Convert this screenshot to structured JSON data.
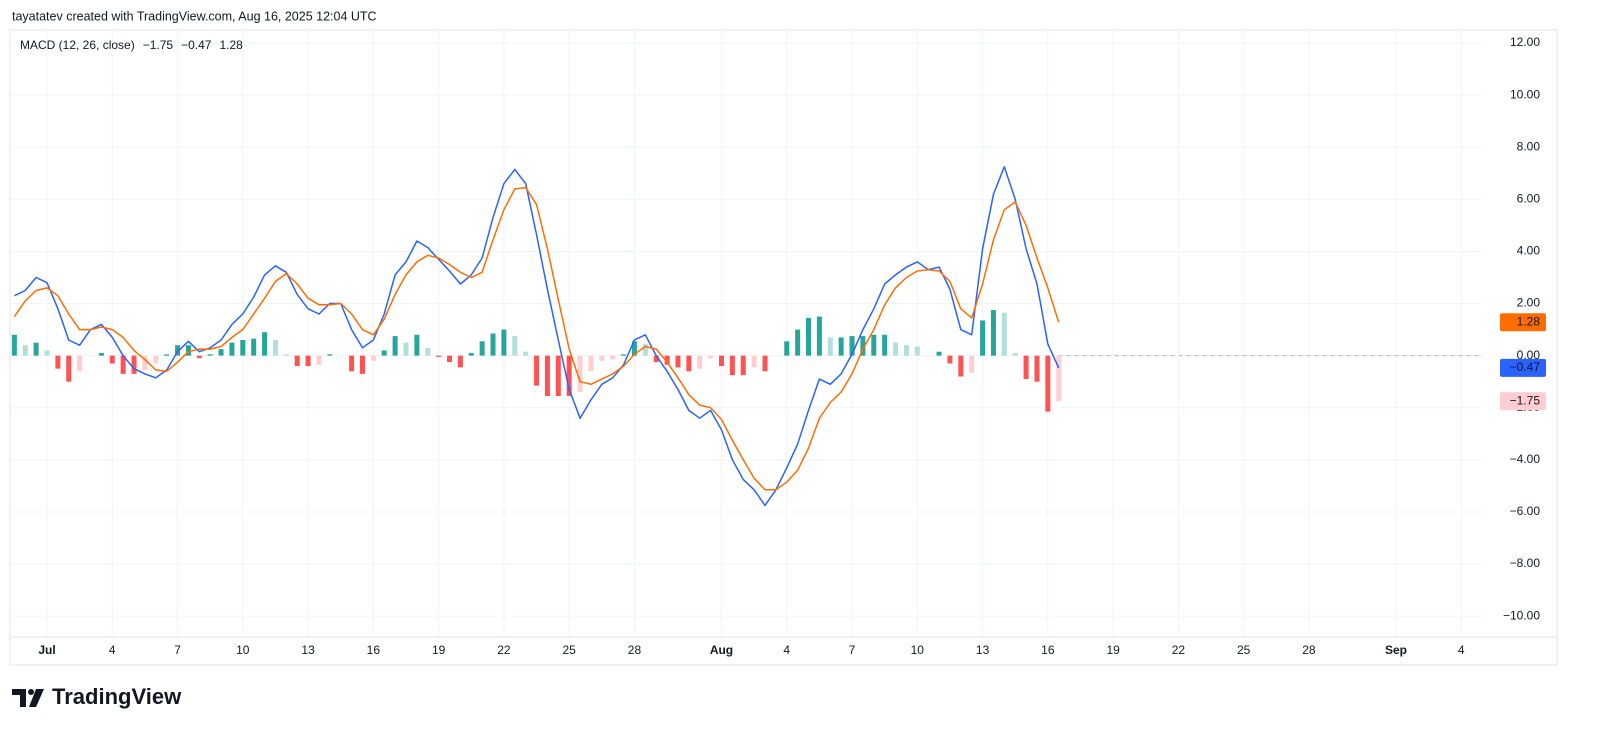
{
  "header": {
    "text": "tayatatev created with TradingView.com, Aug 16, 2025 12:04 UTC"
  },
  "footer": {
    "brand": "TradingView"
  },
  "chart_data": {
    "type": "macd",
    "indicator": "MACD (12, 26, close)",
    "x": [
      -0.5,
      0,
      0.5,
      1,
      1.5,
      2,
      2.5,
      3,
      3.5,
      4,
      4.5,
      5,
      5.5,
      6,
      6.5,
      7,
      7.5,
      8,
      8.5,
      9,
      9.5,
      10,
      10.5,
      11,
      11.5,
      12,
      12.5,
      13,
      13.5,
      14,
      14.5,
      15,
      15.5,
      16,
      16.5,
      17,
      17.5,
      18,
      18.5,
      19,
      19.5,
      20,
      20.5,
      21,
      21.5,
      22,
      22.5,
      23,
      23.5,
      24,
      24.5,
      25,
      25.5,
      26,
      26.5,
      27,
      27.5,
      28,
      28.5,
      29,
      29.5,
      30,
      30.5,
      31,
      31.5,
      32,
      32.5,
      33,
      33.5,
      34,
      34.5,
      35,
      35.5,
      36,
      36.5,
      37,
      37.5,
      38,
      38.5,
      39,
      39.5,
      40,
      40.5,
      41,
      41.5,
      42,
      42.5,
      43,
      43.5,
      44,
      44.5,
      45,
      45.5,
      46,
      46.5,
      47,
      47.5
    ],
    "series": [
      {
        "kind": "histogram",
        "last_value_label": "−1.75",
        "colors": {
          "grow_above": "#26a69a",
          "fall_above": "#b2dfdb",
          "rise_below": "#ffcdd2",
          "fall_below": "#ff5252"
        },
        "values": [
          0.8,
          0.4,
          0.5,
          0.2,
          -0.5,
          -1.0,
          -0.6,
          0,
          0.1,
          -0.3,
          -0.7,
          -0.7,
          -0.55,
          -0.3,
          0.05,
          0.4,
          0.4,
          -0.1,
          0.05,
          0.25,
          0.5,
          0.6,
          0.65,
          0.9,
          0.6,
          0.05,
          -0.4,
          -0.4,
          -0.35,
          0.05,
          0,
          -0.6,
          -0.7,
          -0.2,
          0.2,
          0.75,
          0.5,
          0.8,
          0.3,
          -0.05,
          -0.25,
          -0.45,
          0.1,
          0.55,
          0.85,
          1.0,
          0.75,
          0.15,
          -1.15,
          -1.55,
          -1.55,
          -1.55,
          -1.4,
          -0.6,
          -0.2,
          -0.15,
          0.05,
          0.55,
          0.45,
          -0.25,
          -0.35,
          -0.45,
          -0.6,
          -0.5,
          -0.1,
          -0.4,
          -0.75,
          -0.75,
          -0.45,
          -0.6,
          0,
          0.55,
          1.0,
          1.45,
          1.5,
          0.7,
          0.7,
          0.75,
          0.75,
          0.8,
          0.8,
          0.5,
          0.4,
          0.35,
          0,
          0.15,
          -0.3,
          -0.8,
          -0.65,
          1.35,
          1.75,
          1.65,
          0.1,
          -0.9,
          -1.0,
          -2.15,
          -1.75
        ]
      },
      {
        "kind": "line",
        "color": "#2962ff",
        "label_text_color": "#ffffff",
        "last_value_label": "−0.47",
        "values": [
          2.3,
          2.5,
          3.0,
          2.8,
          1.8,
          0.6,
          0.4,
          1.0,
          1.2,
          0.7,
          0.0,
          -0.5,
          -0.7,
          -0.85,
          -0.55,
          0.15,
          0.55,
          0.15,
          0.3,
          0.6,
          1.2,
          1.6,
          2.25,
          3.1,
          3.45,
          3.2,
          2.35,
          1.8,
          1.6,
          2.0,
          2.0,
          1.0,
          0.3,
          0.6,
          1.6,
          3.1,
          3.6,
          4.4,
          4.15,
          3.7,
          3.25,
          2.75,
          3.1,
          3.75,
          5.3,
          6.6,
          7.15,
          6.6,
          4.65,
          2.55,
          0.6,
          -1.3,
          -2.4,
          -1.7,
          -1.1,
          -0.85,
          -0.35,
          0.6,
          0.8,
          0.0,
          -0.6,
          -1.3,
          -2.1,
          -2.4,
          -2.1,
          -2.85,
          -4.0,
          -4.75,
          -5.15,
          -5.75,
          -5.15,
          -4.3,
          -3.4,
          -2.1,
          -0.9,
          -1.1,
          -0.7,
          0.05,
          1.0,
          1.8,
          2.75,
          3.1,
          3.4,
          3.6,
          3.3,
          3.4,
          2.55,
          1.0,
          0.8,
          4.1,
          6.2,
          7.25,
          6.0,
          4.1,
          2.75,
          0.45,
          -0.47
        ]
      },
      {
        "kind": "line",
        "color": "#ff6d00",
        "label_text_color": "#ffffff",
        "last_value_label": "1.28",
        "values": [
          1.5,
          2.1,
          2.5,
          2.6,
          2.3,
          1.6,
          1.0,
          1.0,
          1.1,
          1.0,
          0.7,
          0.2,
          -0.15,
          -0.55,
          -0.6,
          -0.25,
          0.15,
          0.25,
          0.25,
          0.35,
          0.7,
          1.0,
          1.6,
          2.2,
          2.85,
          3.15,
          2.75,
          2.2,
          1.95,
          1.95,
          2.0,
          1.6,
          1.0,
          0.8,
          1.4,
          2.35,
          3.1,
          3.6,
          3.85,
          3.75,
          3.5,
          3.2,
          3.0,
          3.2,
          4.45,
          5.6,
          6.4,
          6.45,
          5.8,
          4.1,
          2.15,
          0.25,
          -1.0,
          -1.1,
          -0.9,
          -0.7,
          -0.4,
          0.05,
          0.35,
          0.25,
          -0.25,
          -0.85,
          -1.5,
          -1.9,
          -2.0,
          -2.45,
          -3.25,
          -4.0,
          -4.7,
          -5.15,
          -5.15,
          -4.85,
          -4.4,
          -3.55,
          -2.4,
          -1.8,
          -1.4,
          -0.7,
          0.25,
          1.0,
          1.95,
          2.6,
          3.0,
          3.25,
          3.3,
          3.25,
          2.85,
          1.8,
          1.45,
          2.75,
          4.45,
          5.6,
          5.9,
          5.0,
          3.75,
          2.6,
          1.28
        ]
      }
    ],
    "xlim": [
      -0.7,
      67
    ],
    "xticks": [
      {
        "value": 1,
        "label": "Jul"
      },
      {
        "value": 4,
        "label": "4"
      },
      {
        "value": 7,
        "label": "7"
      },
      {
        "value": 10,
        "label": "10"
      },
      {
        "value": 13,
        "label": "13"
      },
      {
        "value": 16,
        "label": "16"
      },
      {
        "value": 19,
        "label": "19"
      },
      {
        "value": 22,
        "label": "22"
      },
      {
        "value": 25,
        "label": "25"
      },
      {
        "value": 28,
        "label": "28"
      },
      {
        "value": 32,
        "label": "Aug"
      },
      {
        "value": 35,
        "label": "4"
      },
      {
        "value": 38,
        "label": "7"
      },
      {
        "value": 41,
        "label": "10"
      },
      {
        "value": 44,
        "label": "13"
      },
      {
        "value": 47,
        "label": "16"
      },
      {
        "value": 50,
        "label": "19"
      },
      {
        "value": 53,
        "label": "22"
      },
      {
        "value": 56,
        "label": "25"
      },
      {
        "value": 59,
        "label": "28"
      },
      {
        "value": 63,
        "label": "Sep"
      },
      {
        "value": 66,
        "label": "4"
      }
    ],
    "ylim": [
      -10.8,
      12.5
    ],
    "yticks": [
      {
        "value": 12,
        "label": "12.00"
      },
      {
        "value": 10,
        "label": "10.00"
      },
      {
        "value": 8,
        "label": "8.00"
      },
      {
        "value": 6,
        "label": "6.00"
      },
      {
        "value": 4,
        "label": "4.00"
      },
      {
        "value": 2,
        "label": "2.00"
      },
      {
        "value": 0,
        "label": "0.00"
      },
      {
        "value": -2,
        "label": "−2.00"
      },
      {
        "value": -4,
        "label": "−4.00"
      },
      {
        "value": -6,
        "label": "−6.00"
      },
      {
        "value": -8,
        "label": "−8.00"
      },
      {
        "value": -10,
        "label": "−10.00"
      }
    ],
    "grid": true
  }
}
